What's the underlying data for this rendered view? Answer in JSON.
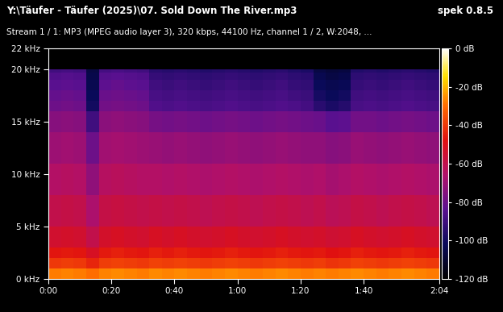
{
  "chart_data": {
    "type": "heatmap",
    "title": "Y:\\Täufer - Täufer (2025)\\07. Sold Down The River.mp3",
    "subtitle": "Stream 1 / 1: MP3 (MPEG audio layer 3), 320 kbps, 44100 Hz, channel 1 / 2, W:2048, ...",
    "annotations": [
      "spek 0.8.5"
    ],
    "x": [
      0,
      4,
      8,
      12,
      16,
      20,
      24,
      28,
      32,
      36,
      40,
      44,
      48,
      52,
      56,
      60,
      64,
      68,
      72,
      76,
      80,
      84,
      88,
      92,
      96,
      100,
      104,
      108,
      112,
      116,
      120,
      124
    ],
    "y": [
      0,
      1,
      2,
      3,
      5,
      8,
      11,
      14,
      16,
      17,
      18,
      19,
      19.7,
      20,
      22
    ],
    "cells": [
      [
        -28,
        -27,
        -28,
        -30,
        -27,
        -26,
        -27,
        -28,
        -26,
        -27,
        -26,
        -27,
        -28,
        -27,
        -26,
        -27,
        -28,
        -27,
        -26,
        -27,
        -28,
        -27,
        -28,
        -27,
        -26,
        -27,
        -28,
        -27,
        -26,
        -27,
        -28
      ],
      [
        -40,
        -39,
        -40,
        -44,
        -39,
        -38,
        -39,
        -40,
        -38,
        -39,
        -38,
        -39,
        -40,
        -39,
        -38,
        -39,
        -40,
        -39,
        -38,
        -39,
        -40,
        -39,
        -41,
        -40,
        -38,
        -39,
        -40,
        -39,
        -38,
        -39,
        -40
      ],
      [
        -47,
        -46,
        -47,
        -52,
        -46,
        -45,
        -46,
        -47,
        -45,
        -46,
        -45,
        -46,
        -47,
        -46,
        -45,
        -46,
        -47,
        -46,
        -45,
        -46,
        -47,
        -46,
        -48,
        -47,
        -45,
        -46,
        -47,
        -46,
        -45,
        -46,
        -47
      ],
      [
        -54,
        -53,
        -54,
        -60,
        -53,
        -52,
        -53,
        -54,
        -52,
        -53,
        -52,
        -53,
        -54,
        -53,
        -52,
        -53,
        -54,
        -53,
        -52,
        -53,
        -54,
        -53,
        -55,
        -54,
        -52,
        -53,
        -54,
        -53,
        -52,
        -53,
        -54
      ],
      [
        -60,
        -59,
        -60,
        -67,
        -59,
        -58,
        -59,
        -60,
        -59,
        -60,
        -59,
        -60,
        -61,
        -60,
        -59,
        -60,
        -61,
        -60,
        -59,
        -60,
        -61,
        -60,
        -62,
        -61,
        -59,
        -60,
        -61,
        -60,
        -59,
        -60,
        -61
      ],
      [
        -65,
        -64,
        -65,
        -73,
        -64,
        -63,
        -64,
        -65,
        -65,
        -66,
        -65,
        -66,
        -67,
        -66,
        -65,
        -66,
        -67,
        -66,
        -65,
        -66,
        -67,
        -66,
        -68,
        -67,
        -65,
        -66,
        -67,
        -66,
        -65,
        -66,
        -67
      ],
      [
        -70,
        -69,
        -70,
        -80,
        -69,
        -68,
        -69,
        -70,
        -71,
        -72,
        -71,
        -72,
        -73,
        -72,
        -71,
        -72,
        -73,
        -72,
        -71,
        -72,
        -73,
        -73,
        -75,
        -74,
        -71,
        -72,
        -73,
        -72,
        -71,
        -72,
        -73
      ],
      [
        -75,
        -74,
        -75,
        -90,
        -74,
        -73,
        -74,
        -75,
        -78,
        -79,
        -78,
        -79,
        -80,
        -79,
        -78,
        -79,
        -80,
        -79,
        -78,
        -79,
        -80,
        -81,
        -84,
        -83,
        -79,
        -79,
        -80,
        -79,
        -78,
        -79,
        -80
      ],
      [
        -80,
        -79,
        -80,
        -100,
        -79,
        -78,
        -79,
        -80,
        -86,
        -87,
        -86,
        -87,
        -88,
        -87,
        -86,
        -87,
        -88,
        -87,
        -86,
        -87,
        -89,
        -95,
        -98,
        -96,
        -88,
        -87,
        -88,
        -87,
        -86,
        -87,
        -88
      ],
      [
        -82,
        -81,
        -82,
        -102,
        -81,
        -80,
        -81,
        -82,
        -88,
        -89,
        -88,
        -89,
        -90,
        -89,
        -88,
        -89,
        -90,
        -89,
        -88,
        -90,
        -91,
        -99,
        -102,
        -100,
        -90,
        -89,
        -90,
        -89,
        -88,
        -89,
        -90
      ],
      [
        -84,
        -83,
        -84,
        -104,
        -83,
        -82,
        -83,
        -84,
        -90,
        -91,
        -90,
        -91,
        -92,
        -91,
        -90,
        -91,
        -92,
        -91,
        -90,
        -92,
        -93,
        -102,
        -104,
        -103,
        -92,
        -91,
        -92,
        -91,
        -90,
        -91,
        -92
      ],
      [
        -86,
        -85,
        -86,
        -105,
        -85,
        -84,
        -85,
        -86,
        -92,
        -93,
        -92,
        -93,
        -94,
        -93,
        -92,
        -93,
        -94,
        -93,
        -92,
        -94,
        -95,
        -104,
        -106,
        -105,
        -94,
        -93,
        -94,
        -93,
        -92,
        -93,
        -94
      ],
      [
        -90,
        -89,
        -90,
        -106,
        -89,
        -88,
        -89,
        -90,
        -95,
        -96,
        -95,
        -96,
        -97,
        -96,
        -95,
        -96,
        -97,
        -96,
        -95,
        -97,
        -98,
        -106,
        -108,
        -107,
        -97,
        -96,
        -97,
        -96,
        -95,
        -96,
        -97
      ],
      [
        -120,
        -120,
        -120,
        -120,
        -120,
        -120,
        -120,
        -120,
        -120,
        -120,
        -120,
        -120,
        -120,
        -120,
        -120,
        -120,
        -120,
        -120,
        -120,
        -120,
        -120,
        -120,
        -120,
        -120,
        -120,
        -120,
        -120,
        -120,
        -120,
        -120,
        -120
      ]
    ],
    "xlim": [
      0,
      124
    ],
    "xticks": [
      {
        "value": 0,
        "label": "0:00"
      },
      {
        "value": 20,
        "label": "0:20"
      },
      {
        "value": 40,
        "label": "0:40"
      },
      {
        "value": 60,
        "label": "1:00"
      },
      {
        "value": 80,
        "label": "1:20"
      },
      {
        "value": 100,
        "label": "1:40"
      },
      {
        "value": 124,
        "label": "2:04"
      }
    ],
    "ylim": [
      0,
      22
    ],
    "yticks": [
      {
        "value": 0,
        "label": "0 kHz"
      },
      {
        "value": 5,
        "label": "5 kHz"
      },
      {
        "value": 10,
        "label": "10 kHz"
      },
      {
        "value": 15,
        "label": "15 kHz"
      },
      {
        "value": 20,
        "label": "20 kHz"
      },
      {
        "value": 22,
        "label": "22 kHz"
      }
    ],
    "color_range": [
      -120,
      0
    ],
    "color_ticks": [
      {
        "value": 0,
        "label": "0 dB"
      },
      {
        "value": -20,
        "label": "-20 dB"
      },
      {
        "value": -40,
        "label": "-40 dB"
      },
      {
        "value": -60,
        "label": "-60 dB"
      },
      {
        "value": -80,
        "label": "-80 dB"
      },
      {
        "value": -100,
        "label": "-100 dB"
      },
      {
        "value": -120,
        "label": "-120 dB"
      }
    ]
  }
}
